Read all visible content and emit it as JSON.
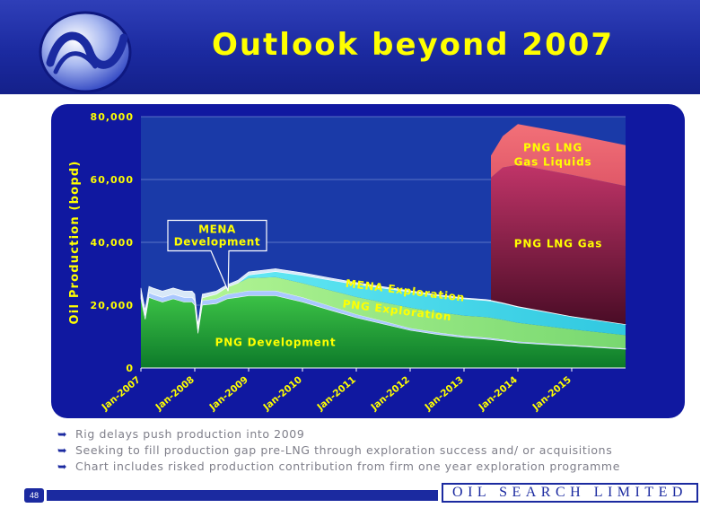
{
  "slide": {
    "title": "Outlook beyond 2007",
    "page_number": "48",
    "brand": "OIL SEARCH LIMITED",
    "bullets": [
      "Rig delays push production into 2009",
      "Seeking to fill production gap pre-LNG through exploration success and/ or acquisitions",
      "Chart includes risked production contribution from firm one year exploration programme"
    ]
  },
  "chart_data": {
    "type": "area",
    "stacked": true,
    "ylabel": "Oil Production (bopd)",
    "ylim": [
      0,
      80000
    ],
    "yticks": [
      0,
      20000,
      40000,
      60000,
      80000
    ],
    "ytick_labels": [
      "0",
      "20,000",
      "40,000",
      "60,000",
      "80,000"
    ],
    "xlim": [
      2007.0,
      2016.0
    ],
    "xticks": [
      2007,
      2008,
      2009,
      2010,
      2011,
      2012,
      2013,
      2014,
      2015
    ],
    "xtick_labels": [
      "Jan-2007",
      "Jan-2008",
      "Jan-2009",
      "Jan-2010",
      "Jan-2011",
      "Jan-2012",
      "Jan-2013",
      "Jan-2014",
      "Jan-2015"
    ],
    "grid": true,
    "x": [
      2007.0,
      2007.08,
      2007.15,
      2007.22,
      2007.4,
      2007.6,
      2007.8,
      2007.95,
      2008.0,
      2008.06,
      2008.14,
      2008.4,
      2008.6,
      2008.8,
      2009.0,
      2009.5,
      2010.0,
      2010.5,
      2011.0,
      2011.5,
      2012.0,
      2012.5,
      2013.0,
      2013.4,
      2013.5,
      2013.72,
      2014.0,
      2014.5,
      2015.0,
      2015.5,
      2016.0
    ],
    "series": [
      {
        "name": "PNG Development",
        "values": [
          22000,
          15500,
          22500,
          22000,
          21000,
          22000,
          21000,
          21000,
          20000,
          11000,
          20000,
          20500,
          22000,
          22500,
          23000,
          23000,
          21000,
          18500,
          16000,
          14000,
          12000,
          10700,
          9700,
          9200,
          9000,
          8600,
          8000,
          7500,
          7000,
          6500,
          6000
        ]
      },
      {
        "name": "",
        "values": [
          1500,
          1200,
          1500,
          1500,
          1500,
          1500,
          1500,
          1500,
          1500,
          1200,
          1500,
          1500,
          1500,
          1500,
          1600,
          1600,
          1500,
          1300,
          1100,
          900,
          700,
          600,
          500,
          500,
          500,
          450,
          400,
          350,
          300,
          300,
          250
        ]
      },
      {
        "name": "PNG Exploration",
        "values": [
          0,
          0,
          0,
          0,
          0,
          0,
          0,
          0,
          0,
          0,
          800,
          1500,
          2200,
          3000,
          4000,
          4300,
          4500,
          5000,
          5500,
          6000,
          6500,
          6500,
          6500,
          6500,
          6500,
          6300,
          6000,
          5500,
          5000,
          4600,
          4200
        ]
      },
      {
        "name": "MENA Exploration",
        "values": [
          0,
          0,
          0,
          0,
          0,
          0,
          0,
          0,
          0,
          0,
          0,
          0,
          0,
          0,
          1000,
          1800,
          2500,
          3200,
          4000,
          4500,
          5000,
          5200,
          5300,
          5300,
          5300,
          5200,
          5000,
          4500,
          4000,
          3700,
          3400
        ]
      },
      {
        "name": "MENA Development",
        "values": [
          2000,
          1800,
          2000,
          2000,
          2000,
          2000,
          2000,
          2000,
          2000,
          1800,
          1200,
          1000,
          800,
          900,
          1000,
          900,
          800,
          700,
          600,
          500,
          400,
          350,
          300,
          300,
          300,
          280,
          250,
          200,
          150,
          100,
          50
        ]
      },
      {
        "name": "PNG LNG Gas",
        "values": [
          0,
          0,
          0,
          0,
          0,
          0,
          0,
          0,
          0,
          0,
          0,
          0,
          0,
          0,
          0,
          0,
          0,
          0,
          0,
          0,
          0,
          0,
          0,
          0,
          39000,
          43000,
          45000,
          45000,
          45000,
          44500,
          44000
        ]
      },
      {
        "name": "PNG LNG Gas Liquids",
        "values": [
          0,
          0,
          0,
          0,
          0,
          0,
          0,
          0,
          0,
          0,
          0,
          0,
          0,
          0,
          0,
          0,
          0,
          0,
          0,
          0,
          0,
          0,
          0,
          0,
          7000,
          10000,
          13000,
          13000,
          13000,
          13000,
          13000
        ]
      }
    ],
    "labels": [
      {
        "text": "PNG Development",
        "x": 2009.5,
        "y": 7000,
        "anchor": "middle",
        "color": "#ffff00"
      },
      {
        "text": "PNG Exploration",
        "x": 2011.75,
        "y": 17200,
        "anchor": "middle",
        "color": "#ffff00",
        "rotate": 7
      },
      {
        "text": "MENA Exploration",
        "x": 2011.9,
        "y": 23500,
        "anchor": "middle",
        "color": "#ffff00",
        "rotate": 7
      },
      {
        "text": "PNG LNG Gas",
        "x": 2014.75,
        "y": 38500,
        "anchor": "middle",
        "color": "#ffff00"
      },
      {
        "text": "PNG LNG",
        "x": 2014.65,
        "y": 69000,
        "anchor": "middle",
        "color": "#ffff00"
      },
      {
        "text": "Gas Liquids",
        "x": 2014.65,
        "y": 64500,
        "anchor": "middle",
        "color": "#ffff00"
      }
    ],
    "callout": {
      "lines": [
        "MENA",
        "Development"
      ],
      "x": 2008.0,
      "y": 43000,
      "point_x": 2008.62,
      "point_y": 24500
    },
    "colors": {
      "panel_bg": "#1018a0",
      "plot_bg": "#1a3aa8",
      "text": "#ffff00",
      "grid": "#7088d0",
      "PNG Development": "#0d7a2a",
      "PNG Development top": "#3cc246",
      "base band": "#aac8ff",
      "PNG Exploration": "#9df07f",
      "MENA Exploration": "#5fe8f0",
      "MENA Development": "#d8e8f8",
      "PNG LNG Gas": "#b03060",
      "PNG LNG Gas dark": "#5a1030",
      "PNG LNG Gas Liquids": "#f06870"
    }
  }
}
